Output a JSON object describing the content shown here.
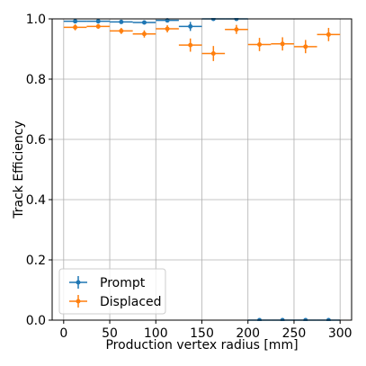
{
  "chart_data": {
    "type": "scatter",
    "title": "",
    "xlabel": "Production vertex radius [mm]",
    "ylabel": "Track Efficiency",
    "xlim": [
      -12.5,
      312.5
    ],
    "ylim": [
      0.0,
      1.0
    ],
    "xticks": [
      0,
      50,
      100,
      150,
      200,
      250,
      300
    ],
    "yticks": [
      0.0,
      0.2,
      0.4,
      0.6,
      0.8,
      1.0
    ],
    "xtick_labels": [
      "0",
      "50",
      "100",
      "150",
      "200",
      "250",
      "300"
    ],
    "ytick_labels": [
      "0.0",
      "0.2",
      "0.4",
      "0.6",
      "0.8",
      "1.0"
    ],
    "grid": true,
    "legend_position": "lower-left",
    "series": [
      {
        "name": "Prompt",
        "color": "#1f77b4",
        "points": [
          {
            "x": 12.5,
            "y": 0.992,
            "xerr": 12.5,
            "yerr": 0.003
          },
          {
            "x": 37.5,
            "y": 0.992,
            "xerr": 12.5,
            "yerr": 0.003
          },
          {
            "x": 62.5,
            "y": 0.99,
            "xerr": 12.5,
            "yerr": 0.003
          },
          {
            "x": 87.5,
            "y": 0.988,
            "xerr": 12.5,
            "yerr": 0.004
          },
          {
            "x": 112.5,
            "y": 0.995,
            "xerr": 12.5,
            "yerr": 0.004
          },
          {
            "x": 137.5,
            "y": 0.975,
            "xerr": 12.5,
            "yerr": 0.015
          },
          {
            "x": 162.5,
            "y": 1.0,
            "xerr": 12.5,
            "yerr": 0.0
          },
          {
            "x": 187.5,
            "y": 1.0,
            "xerr": 12.5,
            "yerr": 0.0
          },
          {
            "x": 212.5,
            "y": 0.0,
            "xerr": 12.5,
            "yerr": 0.0
          },
          {
            "x": 237.5,
            "y": 0.0,
            "xerr": 12.5,
            "yerr": 0.0
          },
          {
            "x": 262.5,
            "y": 0.0,
            "xerr": 12.5,
            "yerr": 0.0
          },
          {
            "x": 287.5,
            "y": 0.0,
            "xerr": 12.5,
            "yerr": 0.0
          }
        ]
      },
      {
        "name": "Displaced",
        "color": "#ff7f0e",
        "points": [
          {
            "x": 12.5,
            "y": 0.972,
            "xerr": 12.5,
            "yerr": 0.01
          },
          {
            "x": 37.5,
            "y": 0.975,
            "xerr": 12.5,
            "yerr": 0.008
          },
          {
            "x": 62.5,
            "y": 0.96,
            "xerr": 12.5,
            "yerr": 0.01
          },
          {
            "x": 87.5,
            "y": 0.95,
            "xerr": 12.5,
            "yerr": 0.012
          },
          {
            "x": 112.5,
            "y": 0.967,
            "xerr": 12.5,
            "yerr": 0.012
          },
          {
            "x": 137.5,
            "y": 0.913,
            "xerr": 12.5,
            "yerr": 0.022
          },
          {
            "x": 162.5,
            "y": 0.885,
            "xerr": 12.5,
            "yerr": 0.025
          },
          {
            "x": 187.5,
            "y": 0.965,
            "xerr": 12.5,
            "yerr": 0.015
          },
          {
            "x": 212.5,
            "y": 0.915,
            "xerr": 12.5,
            "yerr": 0.022
          },
          {
            "x": 237.5,
            "y": 0.917,
            "xerr": 12.5,
            "yerr": 0.022
          },
          {
            "x": 262.5,
            "y": 0.908,
            "xerr": 12.5,
            "yerr": 0.022
          },
          {
            "x": 287.5,
            "y": 0.948,
            "xerr": 12.5,
            "yerr": 0.022
          }
        ]
      }
    ]
  }
}
